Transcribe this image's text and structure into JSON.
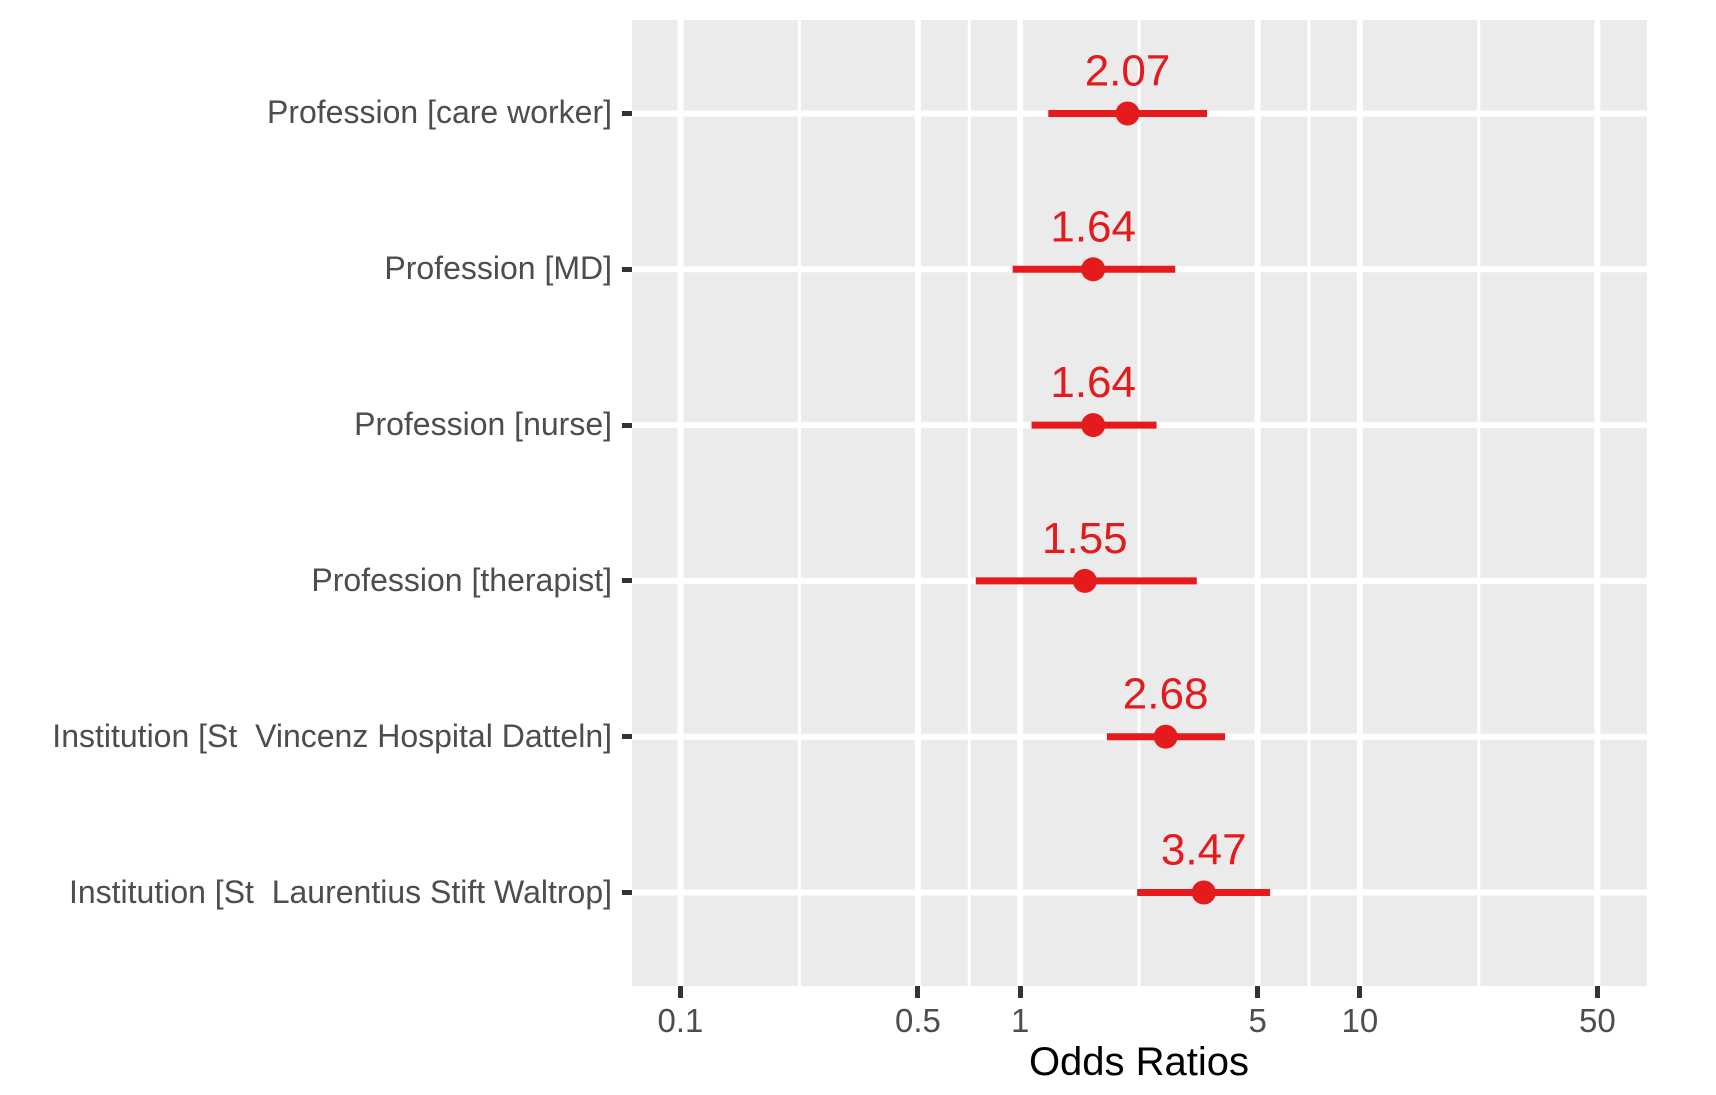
{
  "chart_data": {
    "type": "scatter",
    "subtype": "forest-plot-odds-ratios",
    "title": "",
    "xlabel": "Odds Ratios",
    "ylabel": "",
    "x_scale": "log10",
    "xlim": [
      0.072,
      70
    ],
    "x_ticks": [
      0.1,
      0.5,
      1,
      5,
      10,
      50
    ],
    "x_tick_labels": [
      "0.1",
      "0.5",
      "1",
      "5",
      "10",
      "50"
    ],
    "x_minor_gridlines": [
      0.2239,
      0.7079,
      2.2387,
      7.0795,
      22.387
    ],
    "grid": "major-and-minor, white on grey panel",
    "legend": null,
    "rows": [
      {
        "label": "Profession [care worker]",
        "or": 2.07,
        "or_label": "2.07",
        "ci_low": 1.21,
        "ci_high": 3.55
      },
      {
        "label": "Profession [MD]",
        "or": 1.64,
        "or_label": "1.64",
        "ci_low": 0.95,
        "ci_high": 2.86
      },
      {
        "label": "Profession [nurse]",
        "or": 1.64,
        "or_label": "1.64",
        "ci_low": 1.08,
        "ci_high": 2.52
      },
      {
        "label": "Profession [therapist]",
        "or": 1.55,
        "or_label": "1.55",
        "ci_low": 0.74,
        "ci_high": 3.31
      },
      {
        "label": "Institution [St  Vincenz Hospital Datteln]",
        "or": 2.68,
        "or_label": "2.68",
        "ci_low": 1.8,
        "ci_high": 4.01
      },
      {
        "label": "Institution [St  Laurentius Stift Waltrop]",
        "or": 3.47,
        "or_label": "3.47",
        "ci_low": 2.21,
        "ci_high": 5.44
      }
    ],
    "colors": {
      "point": "#e41a1c",
      "value_label": "#e41a1c",
      "panel_bg": "#ebebeb",
      "gridline": "#ffffff",
      "axis_text": "#4d4d4d",
      "axis_title": "#000000",
      "tick_mark": "#333333",
      "figure_bg": "#ffffff"
    }
  }
}
